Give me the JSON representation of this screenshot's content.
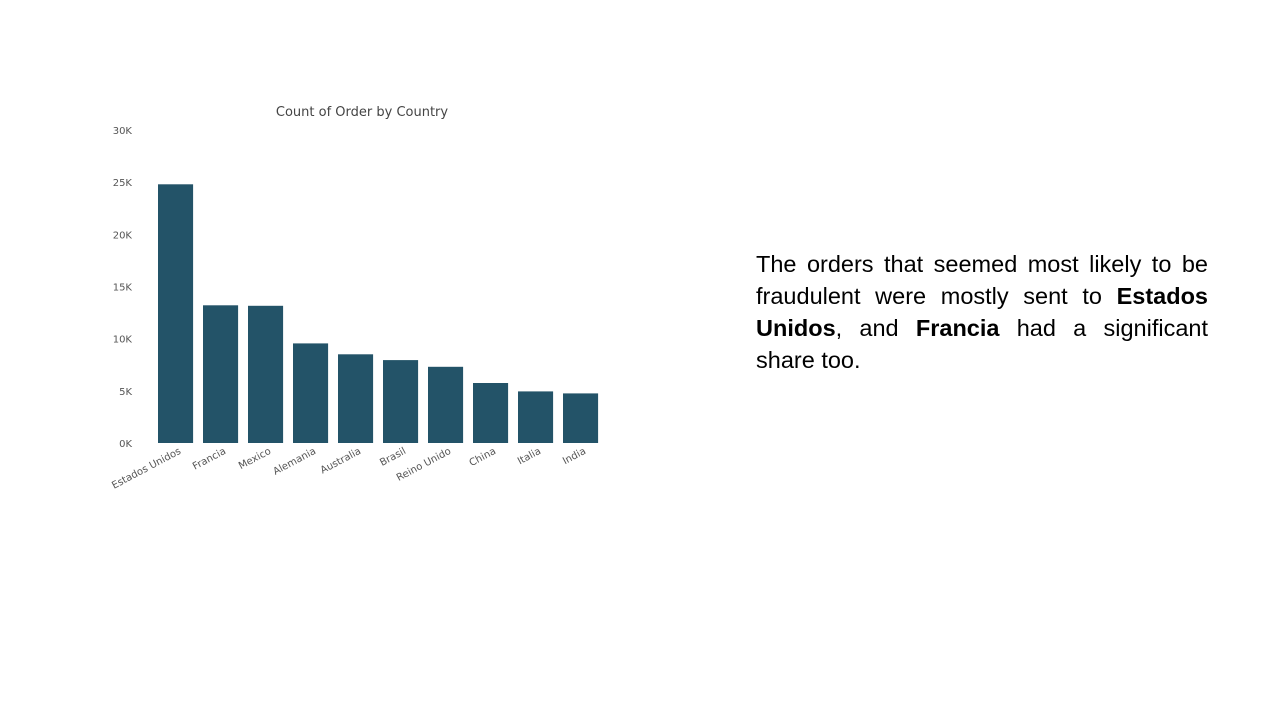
{
  "chart_data": {
    "type": "bar",
    "title": "Count of Order by Country",
    "xlabel": "",
    "ylabel": "",
    "categories": [
      "Estados Unidos",
      "Francia",
      "Mexico",
      "Alemania",
      "Australia",
      "Brasil",
      "Reino Unido",
      "China",
      "Italia",
      "India"
    ],
    "values": [
      24800,
      13200,
      13150,
      9550,
      8500,
      7950,
      7300,
      5750,
      4950,
      4750
    ],
    "ylim": [
      0,
      30000
    ],
    "yticks": [
      "0K",
      "5K",
      "10K",
      "15K",
      "20K",
      "25K",
      "30K"
    ],
    "ytick_values": [
      0,
      5000,
      10000,
      15000,
      20000,
      25000,
      30000
    ],
    "bar_color": "#235368",
    "grid": false,
    "legend": "none"
  },
  "text": {
    "part1": "The orders that seemed most likely to be fraudulent were mostly sent to ",
    "bold1": "Estados Unidos",
    "part2": ", and ",
    "bold2": "Francia",
    "part3": " had a significant share too."
  }
}
